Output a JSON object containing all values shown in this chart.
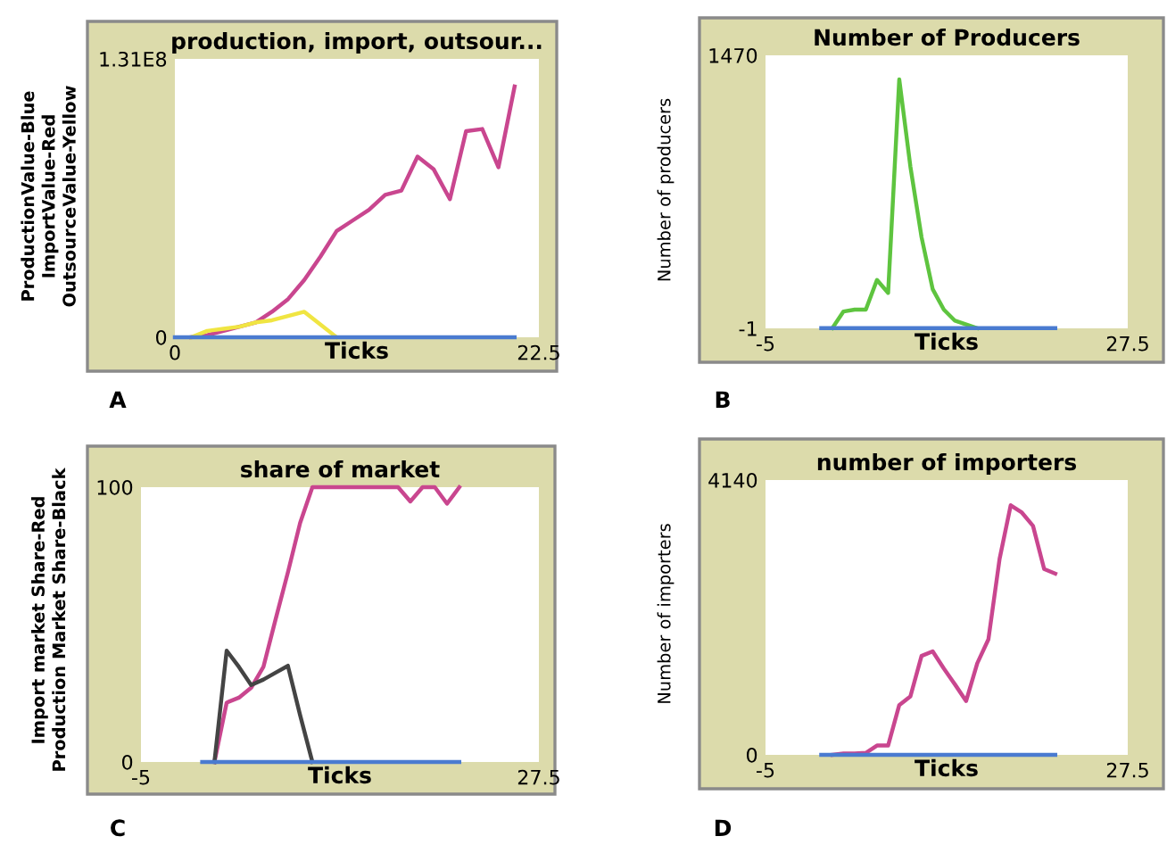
{
  "chart_data": [
    {
      "type": "line",
      "title": "production, import, outsour...",
      "xlabel": "Ticks",
      "ylabel": "ProductionValue-Blue\nImportValue-Red\nOutsourceValue-Yellow",
      "annotations": [
        "A"
      ],
      "xlim": [
        0,
        22.5
      ],
      "ylim": [
        0,
        131000000
      ],
      "xticks": [
        0,
        22.5
      ],
      "yticks": [
        0,
        {
          "value": 131000000,
          "label": "1.31E8"
        }
      ],
      "grid": false,
      "legend": false,
      "series": [
        {
          "color": "#c9468f",
          "x": [
            1,
            2,
            3,
            4,
            5,
            6,
            7,
            8,
            9,
            10,
            11,
            12,
            13,
            14,
            15,
            16,
            17,
            18,
            19,
            20,
            21
          ],
          "values": [
            0,
            1000000,
            3000000,
            5000000,
            7000000,
            12000000,
            18000000,
            27000000,
            38000000,
            50000000,
            55000000,
            60000000,
            67000000,
            69000000,
            85000000,
            79000000,
            65000000,
            97000000,
            98000000,
            80000000,
            118000000
          ]
        },
        {
          "color": "#f0e542",
          "x": [
            1,
            2,
            3,
            4,
            5,
            6,
            7,
            8,
            9,
            10
          ],
          "values": [
            0,
            3000000,
            4000000,
            5000000,
            7000000,
            8000000,
            10000000,
            12000000,
            6000000,
            0
          ]
        },
        {
          "color": "#4a7bd0",
          "x": [
            0,
            21
          ],
          "values": [
            0,
            0
          ]
        }
      ]
    },
    {
      "type": "line",
      "title": "Number of Producers",
      "xlabel": "Ticks",
      "ylabel": "Number of producers",
      "annotations": [
        "B"
      ],
      "xlim": [
        -5,
        27.5
      ],
      "ylim": [
        -1,
        1470
      ],
      "xticks": [
        -5,
        27.5
      ],
      "yticks": [
        -1,
        1470
      ],
      "grid": false,
      "legend": false,
      "series": [
        {
          "color": "#5ec43f",
          "x": [
            1,
            2,
            3,
            4,
            5,
            6,
            7,
            8,
            9,
            10,
            11,
            12,
            13,
            14
          ],
          "values": [
            0,
            90,
            100,
            100,
            260,
            190,
            1340,
            870,
            490,
            210,
            100,
            40,
            20,
            0
          ]
        },
        {
          "color": "#4a7bd0",
          "x": [
            0,
            21
          ],
          "values": [
            0,
            0
          ]
        }
      ]
    },
    {
      "type": "line",
      "title": "share of market",
      "xlabel": "Ticks",
      "ylabel": "Import market Share-Red\nProduction Market Share-Black",
      "annotations": [
        "C"
      ],
      "xlim": [
        -5,
        27.5
      ],
      "ylim": [
        0,
        100
      ],
      "xticks": [
        -5,
        27.5
      ],
      "yticks": [
        0,
        100
      ],
      "grid": false,
      "legend": false,
      "series": [
        {
          "color": "#c9468f",
          "x": [
            1,
            2,
            3,
            4,
            5,
            6,
            7,
            8,
            9,
            10,
            11,
            12,
            13,
            14,
            15,
            16,
            17,
            18,
            19,
            20,
            21
          ],
          "values": [
            0,
            21.6,
            23.4,
            27,
            34.6,
            52,
            69,
            87,
            100,
            100,
            100,
            100,
            100,
            100,
            100,
            100,
            94.8,
            100,
            100,
            94,
            100
          ]
        },
        {
          "color": "#444444",
          "x": [
            1,
            2,
            3,
            4,
            5,
            6,
            7,
            8,
            9
          ],
          "values": [
            0,
            40.5,
            34.6,
            28,
            30,
            32.5,
            35,
            17,
            0
          ]
        },
        {
          "color": "#4a7bd0",
          "x": [
            0,
            21
          ],
          "values": [
            0,
            0
          ]
        }
      ]
    },
    {
      "type": "line",
      "title": "number of importers",
      "xlabel": "Ticks",
      "ylabel": "Number of importers",
      "annotations": [
        "D"
      ],
      "xlim": [
        -5,
        27.5
      ],
      "ylim": [
        0,
        4140
      ],
      "xticks": [
        -5,
        27.5
      ],
      "yticks": [
        0,
        4140
      ],
      "grid": false,
      "legend": false,
      "series": [
        {
          "color": "#c9468f",
          "x": [
            1,
            2,
            3,
            4,
            5,
            6,
            7,
            8,
            9,
            10,
            11,
            12,
            13,
            14,
            15,
            16,
            17,
            18,
            19,
            20,
            21
          ],
          "values": [
            0,
            20,
            20,
            30,
            140,
            140,
            750,
            880,
            1490,
            1560,
            1300,
            1060,
            810,
            1380,
            1740,
            2950,
            3760,
            3650,
            3450,
            2800,
            2730
          ]
        },
        {
          "color": "#4a7bd0",
          "x": [
            0,
            21
          ],
          "values": [
            0,
            0
          ]
        }
      ]
    }
  ]
}
